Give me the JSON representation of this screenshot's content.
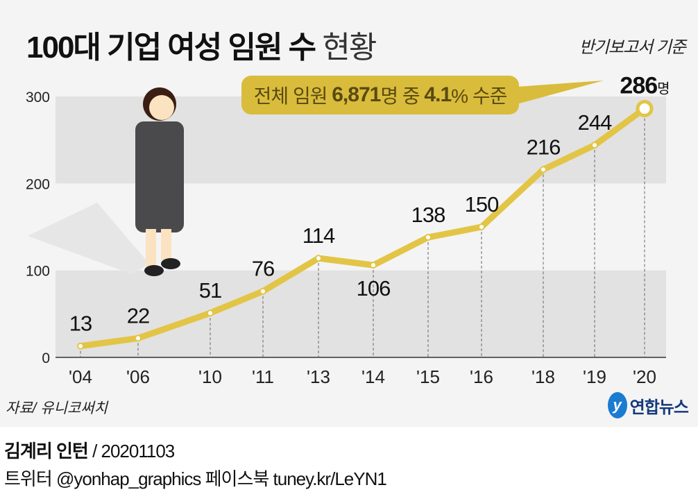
{
  "title": {
    "bold": "100대 기업 여성 임원 수",
    "light": "현황"
  },
  "basis": "반기보고서 기준",
  "callout": {
    "prefix": "전체 임원",
    "total": "6,871",
    "mid": "명 중",
    "pct": "4.1",
    "suffix": "% 수준"
  },
  "source": "자료/ 유니코써치",
  "logo": {
    "mark": "y",
    "text": "연합뉴스"
  },
  "footer": {
    "author": "김계리 인턴",
    "date": "/ 20201103",
    "social": "트위터 @yonhap_graphics  페이스북 tuney.kr/LeYN1"
  },
  "colors": {
    "background": "#f4f4f4",
    "band": "#e2e2e2",
    "line": "#e2c546",
    "callout": "#d9bc3c"
  },
  "chart_data": {
    "type": "line",
    "categories": [
      "'04",
      "'06",
      "'10",
      "'11",
      "'13",
      "'14",
      "'15",
      "'16",
      "'18",
      "'19",
      "'20"
    ],
    "values": [
      13,
      22,
      51,
      76,
      114,
      106,
      138,
      150,
      216,
      244,
      286
    ],
    "labels": [
      "13",
      "22",
      "51",
      "76",
      "114",
      "106",
      "138",
      "150",
      "216",
      "244",
      "286"
    ],
    "last_unit": "명",
    "yticks": [
      "0",
      "100",
      "200",
      "300"
    ],
    "ylim": [
      0,
      300
    ],
    "grid": "alternating bands"
  }
}
